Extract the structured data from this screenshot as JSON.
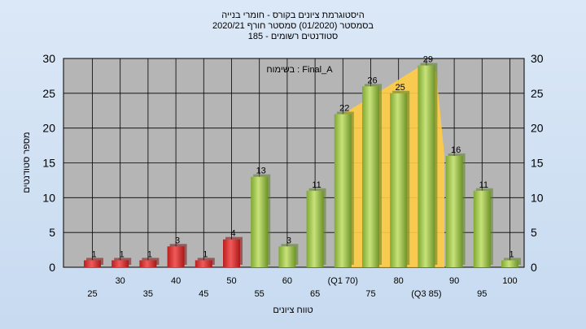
{
  "chart_data": {
    "type": "bar",
    "title_lines": [
      "היסטוגרמת ציונים בקורס - חומרי בנייה",
      "בסמסטר  (01/2020)  סמסטר חורף  2020/21",
      "סטודנטים רשומים - 185"
    ],
    "xlabel": "טווח ציונים",
    "ylabel": "מספר סטודנטים",
    "annotation": "בשימוח : Final_A",
    "categories": [
      "25",
      "30",
      "35",
      "40",
      "45",
      "50",
      "55",
      "60",
      "65",
      "(Q1 70)",
      "75",
      "80",
      "(Q3 85)",
      "90",
      "95",
      "100"
    ],
    "values": [
      1,
      1,
      1,
      3,
      1,
      4,
      13,
      3,
      11,
      22,
      26,
      25,
      29,
      16,
      11,
      1
    ],
    "bar_colors": [
      "red",
      "red",
      "red",
      "red",
      "red",
      "red",
      "green",
      "green",
      "green",
      "green",
      "green",
      "green",
      "green",
      "green",
      "green",
      "green"
    ],
    "ylim": [
      0,
      30
    ],
    "yticks": [
      "0",
      "5",
      "10",
      "15",
      "20",
      "25",
      "30"
    ],
    "grid": true,
    "iqr_band": {
      "from": "(Q1 70)",
      "to": "(Q3 85)",
      "color": "#ffcc44"
    },
    "colors": {
      "red": "#e03a3a",
      "green": "#9cc445",
      "plot_bg": "#b5b5b5",
      "band": "#ffcc44"
    }
  }
}
